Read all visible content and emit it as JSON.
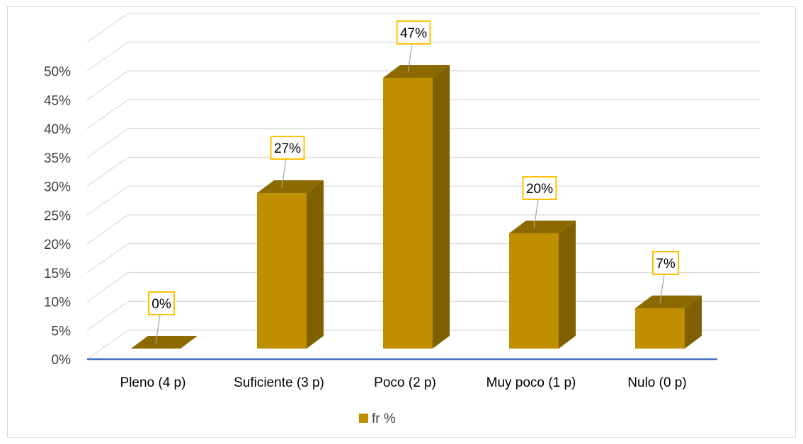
{
  "chart_data": {
    "type": "bar",
    "three_d": true,
    "categories": [
      "Pleno (4 p)",
      "Suficiente (3 p)",
      "Poco (2 p)",
      "Muy poco (1 p)",
      "Nulo (0 p)"
    ],
    "series": [
      {
        "name": "fr %",
        "values": [
          0,
          27,
          47,
          20,
          7
        ],
        "labels": [
          "0%",
          "27%",
          "47%",
          "20%",
          "7%"
        ],
        "color": "#bf8f00"
      }
    ],
    "y_ticks": [
      "0%",
      "5%",
      "10%",
      "15%",
      "20%",
      "25%",
      "30%",
      "35%",
      "40%",
      "45%",
      "50%"
    ],
    "ylim": [
      0,
      55
    ],
    "grid": true,
    "legend": "bottom",
    "colors": {
      "bar_front": "#bf8f00",
      "bar_side": "#7f6000",
      "bar_top": "#8c6a00",
      "label_border": "#ffc000",
      "axis_line": "#4472c4",
      "grid": "#d9d9d9"
    }
  }
}
